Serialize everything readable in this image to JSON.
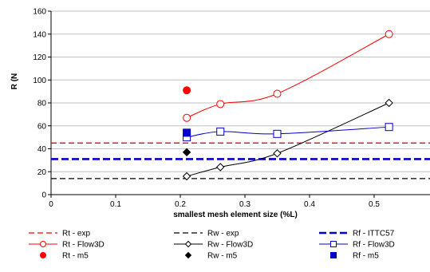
{
  "chart_data": {
    "type": "line",
    "xlabel": "smallest mesh element size (%L)",
    "ylabel": "R (N",
    "xlim": [
      0,
      0.6
    ],
    "ylim": [
      0,
      160
    ],
    "xticks": [
      0,
      0.1,
      0.2,
      0.3,
      0.4,
      0.5,
      0.6
    ],
    "xtick_labels": [
      "0",
      "0.1",
      "0.2",
      "0.3",
      "0.4",
      "0.5",
      "0.6"
    ],
    "yticks": [
      0,
      20,
      40,
      60,
      80,
      100,
      120,
      140,
      160
    ],
    "ytick_labels": [
      "0",
      "20",
      "40",
      "60",
      "80",
      "100",
      "120",
      "140",
      "160"
    ],
    "grid": "horizontal major gridlines",
    "legend_placement": "bottom",
    "series": [
      {
        "name": "Rt - exp",
        "kind": "hline",
        "y": 45,
        "color": "#ff0000",
        "dash": "dashed"
      },
      {
        "name": "Rw - exp",
        "kind": "hline",
        "y": 14,
        "color": "#000000",
        "dash": "dashed"
      },
      {
        "name": "Rf - ITTC57",
        "kind": "hline",
        "y": 31,
        "color": "#0000cc",
        "dash": "dashed-thick"
      },
      {
        "name": "Rt - Flow3D",
        "kind": "line",
        "marker": "circle-open",
        "color": "#ff0000",
        "x": [
          0.21,
          0.262,
          0.35,
          0.523
        ],
        "y": [
          67,
          79,
          88,
          140
        ]
      },
      {
        "name": "Rw - Flow3D",
        "kind": "line",
        "marker": "diamond-open",
        "color": "#000000",
        "x": [
          0.21,
          0.262,
          0.35,
          0.523
        ],
        "y": [
          16,
          24,
          36,
          80
        ]
      },
      {
        "name": "Rf - Flow3D",
        "kind": "line",
        "marker": "square-open",
        "color": "#0000cc",
        "x": [
          0.21,
          0.262,
          0.35,
          0.523
        ],
        "y": [
          50,
          55,
          53,
          59
        ]
      },
      {
        "name": "Rt - m5",
        "kind": "point",
        "marker": "circle-filled",
        "color": "#ff0000",
        "x": [
          0.21
        ],
        "y": [
          91
        ]
      },
      {
        "name": "Rw - m5",
        "kind": "point",
        "marker": "diamond-filled",
        "color": "#000000",
        "x": [
          0.21
        ],
        "y": [
          37
        ]
      },
      {
        "name": "Rf - m5",
        "kind": "point",
        "marker": "square-filled",
        "color": "#0000cc",
        "x": [
          0.21
        ],
        "y": [
          54
        ]
      }
    ]
  }
}
